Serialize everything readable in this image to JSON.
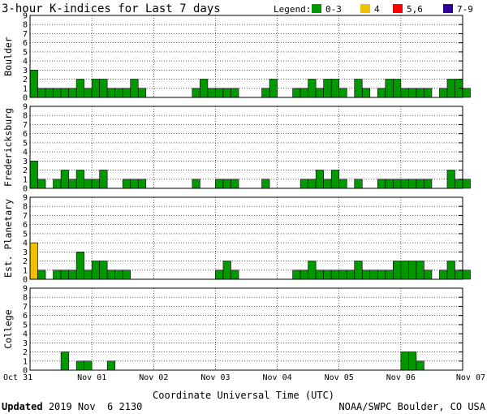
{
  "title": "3-hour K-indices for Last 7 days",
  "legend": {
    "label": "Legend:",
    "items": [
      {
        "name": "0-3",
        "color": "#009900"
      },
      {
        "name": "4",
        "color": "#f0c000"
      },
      {
        "name": "5,6",
        "color": "#ff0000"
      },
      {
        "name": "7-9",
        "color": "#330099"
      }
    ]
  },
  "footer": {
    "updated_label": "Updated",
    "updated_value": "2019 Nov  6 2130",
    "source": "NOAA/SWPC Boulder, CO USA"
  },
  "chart_data": {
    "type": "bar",
    "xlabel": "Coordinate Universal Time (UTC)",
    "x_ticks": [
      "Oct 31",
      "Nov 01",
      "Nov 02",
      "Nov 03",
      "Nov 04",
      "Nov 05",
      "Nov 06",
      "Nov 07"
    ],
    "ylim": [
      0,
      9
    ],
    "y_ticks": [
      0,
      1,
      2,
      3,
      4,
      5,
      6,
      7,
      8,
      9
    ],
    "bins_per_day": 8,
    "grid": true,
    "series": [
      {
        "name": "Boulder",
        "values": [
          3,
          1,
          1,
          1,
          1,
          1,
          2,
          1,
          2,
          2,
          1,
          1,
          1,
          2,
          1,
          0,
          0,
          0,
          0,
          0,
          0,
          1,
          2,
          1,
          1,
          1,
          1,
          0,
          0,
          0,
          1,
          2,
          0,
          0,
          1,
          1,
          2,
          1,
          2,
          2,
          1,
          0,
          2,
          1,
          0,
          1,
          2,
          2,
          1,
          1,
          1,
          1,
          0,
          1,
          2,
          2,
          1,
          0
        ]
      },
      {
        "name": "Fredericksburg",
        "values": [
          3,
          1,
          0,
          1,
          2,
          1,
          2,
          1,
          1,
          2,
          0,
          0,
          1,
          1,
          1,
          0,
          0,
          0,
          0,
          0,
          0,
          1,
          0,
          0,
          1,
          1,
          1,
          0,
          0,
          0,
          1,
          0,
          0,
          0,
          0,
          1,
          1,
          2,
          1,
          2,
          1,
          0,
          1,
          0,
          0,
          1,
          1,
          1,
          1,
          1,
          1,
          1,
          0,
          0,
          2,
          1,
          1,
          0
        ]
      },
      {
        "name": "Est. Planetary",
        "values": [
          4,
          1,
          0,
          1,
          1,
          1,
          3,
          1,
          2,
          2,
          1,
          1,
          1,
          0,
          0,
          0,
          0,
          0,
          0,
          0,
          0,
          0,
          0,
          0,
          1,
          2,
          1,
          0,
          0,
          0,
          0,
          0,
          0,
          0,
          1,
          1,
          2,
          1,
          1,
          1,
          1,
          1,
          2,
          1,
          1,
          1,
          1,
          2,
          2,
          2,
          2,
          1,
          0,
          1,
          2,
          1,
          1,
          0
        ]
      },
      {
        "name": "College",
        "values": [
          0,
          0,
          0,
          0,
          2,
          0,
          1,
          1,
          0,
          0,
          1,
          0,
          0,
          0,
          0,
          0,
          0,
          0,
          0,
          0,
          0,
          0,
          0,
          0,
          0,
          0,
          0,
          0,
          0,
          0,
          0,
          0,
          0,
          0,
          0,
          0,
          0,
          0,
          0,
          0,
          0,
          0,
          0,
          0,
          0,
          0,
          0,
          0,
          2,
          2,
          1,
          0,
          0,
          0,
          0,
          0,
          0,
          0
        ]
      }
    ]
  }
}
